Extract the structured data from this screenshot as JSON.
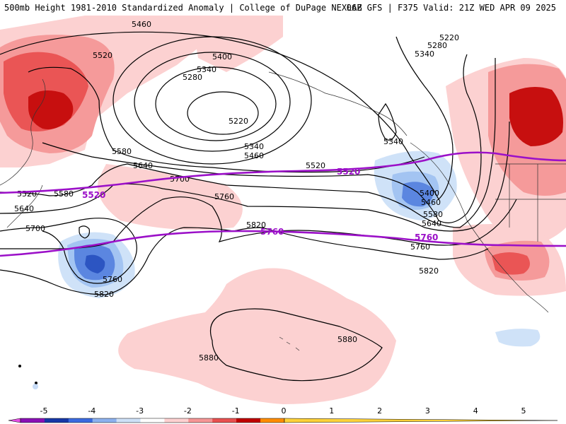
{
  "header": {
    "title_left": "500mb Height 1981-2010 Standardized Anomaly | College of DuPage NEXLAB",
    "title_right": "06Z GFS | F375 Valid: 21Z WED APR 09 2025"
  },
  "height_contour_labels": [
    "5460",
    "5520",
    "5400",
    "5340",
    "5280",
    "5220",
    "5580",
    "5640",
    "5700",
    "5760",
    "5820",
    "5880",
    "5880",
    "5220",
    "5280",
    "5340",
    "5340",
    "5400",
    "5460",
    "5520",
    "5580",
    "5640",
    "5760",
    "5820",
    "5340",
    "5460",
    "5520",
    "5580",
    "5640",
    "5700",
    "5760",
    "5820"
  ],
  "reference_contours": [
    {
      "value": "5520",
      "labels": [
        "5520",
        "5520"
      ]
    },
    {
      "value": "5760",
      "labels": [
        "5760",
        "5760"
      ]
    }
  ],
  "colorbar": {
    "tick_labels": [
      "-5",
      "-4",
      "-3",
      "-2",
      "-1",
      "0",
      "1",
      "2",
      "3",
      "4",
      "5"
    ],
    "colors": [
      "#e64fe6",
      "#8a0fb6",
      "#1637a7",
      "#3a6ae0",
      "#8cb1ee",
      "#cde0f7",
      "#ffffff",
      "#fdd0d0",
      "#f59595",
      "#e85050",
      "#c00000",
      "#ff8c00",
      "#ffd23a"
    ]
  },
  "anomaly_colors": {
    "pos1": "#fcd1d1",
    "pos2": "#f59a9a",
    "pos3": "#ea5555",
    "pos4": "#c70f0f",
    "neg1": "#cfe2f8",
    "neg2": "#a3c4f2",
    "neg3": "#5b86e0",
    "neg4": "#2c55c2"
  },
  "reference_color": "#9b10c8"
}
